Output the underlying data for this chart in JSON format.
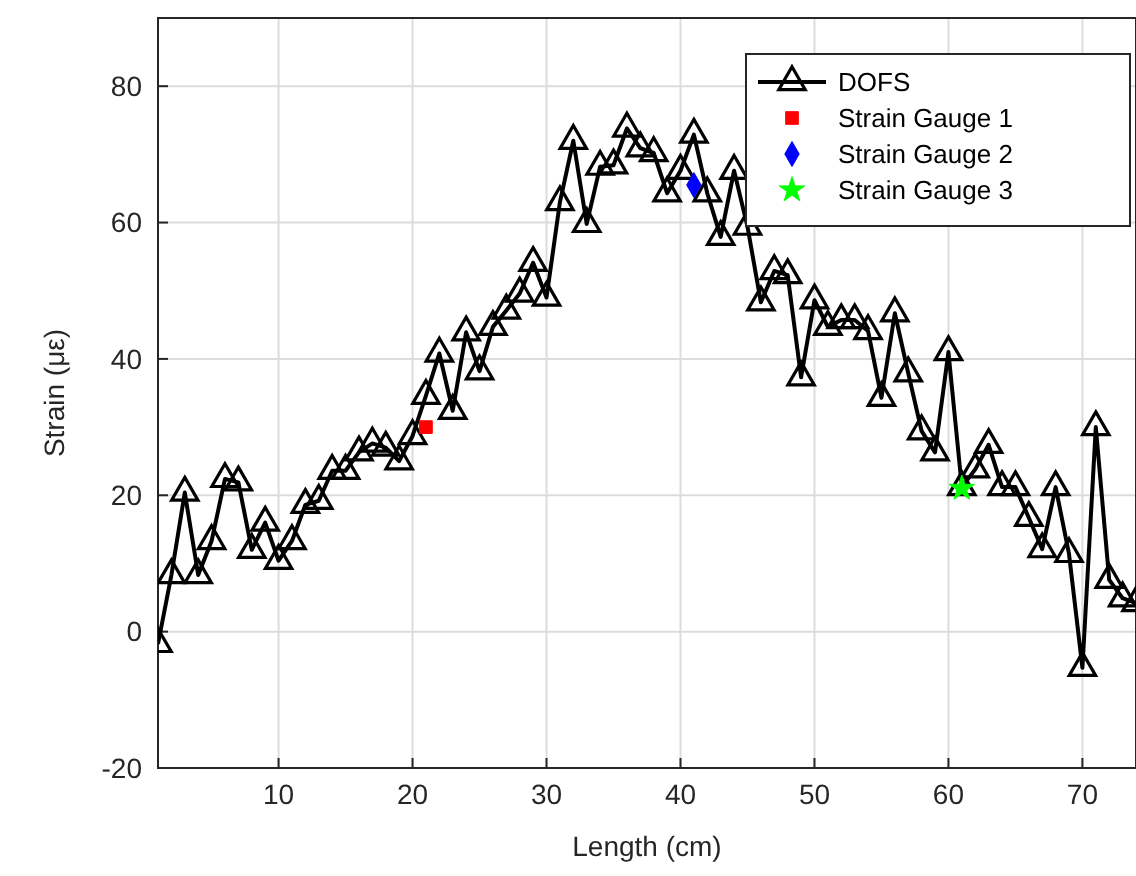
{
  "chart_data": {
    "type": "line",
    "xlabel": "Length (cm)",
    "ylabel": "Strain (με)",
    "xlim": [
      1,
      74
    ],
    "ylim": [
      -20,
      90
    ],
    "xticks": [
      10,
      20,
      30,
      40,
      50,
      60,
      70
    ],
    "yticks": [
      -20,
      0,
      20,
      40,
      60,
      80
    ],
    "grid": true,
    "legend": "top right",
    "series": [
      {
        "name": "DOFS",
        "marker": "triangle",
        "color": "#000000",
        "x": [
          1,
          2,
          3,
          4,
          5,
          6,
          7,
          8,
          9,
          10,
          11,
          12,
          13,
          14,
          15,
          16,
          17,
          18,
          19,
          20,
          21,
          22,
          23,
          24,
          25,
          26,
          27,
          28,
          29,
          30,
          31,
          32,
          33,
          34,
          35,
          36,
          37,
          38,
          39,
          40,
          41,
          42,
          43,
          44,
          45,
          46,
          47,
          48,
          49,
          50,
          51,
          52,
          53,
          54,
          55,
          56,
          57,
          58,
          59,
          60,
          61,
          62,
          63,
          64,
          65,
          66,
          67,
          68,
          69,
          70,
          71,
          72,
          73,
          74
        ],
        "values": [
          -1.8,
          8.3,
          20.4,
          8.3,
          13.3,
          22.4,
          21.9,
          12,
          16,
          10.4,
          13.3,
          18.6,
          19.2,
          23.6,
          23.6,
          26.3,
          27.6,
          27,
          25,
          28.7,
          34.6,
          40.8,
          32.4,
          43.9,
          38.2,
          44.7,
          47.1,
          49.6,
          54.1,
          49,
          63,
          72,
          59.8,
          68.2,
          68.4,
          73.8,
          70.9,
          70.2,
          64.3,
          67.6,
          72.9,
          64.3,
          57.9,
          67.6,
          59.4,
          48.3,
          52.9,
          52.3,
          37.3,
          48.6,
          44.7,
          45.7,
          45.7,
          44.1,
          34.3,
          46.7,
          37.9,
          29.4,
          26.3,
          41,
          21.2,
          23.8,
          27.4,
          21.2,
          21.2,
          16.7,
          12.1,
          21.2,
          11.4,
          -5.3,
          30,
          7.6,
          4.9,
          4.2
        ]
      },
      {
        "name": "Strain Gauge 1",
        "type": "scatter",
        "marker": "square",
        "color": "#ff0000",
        "x": [
          21
        ],
        "values": [
          30
        ]
      },
      {
        "name": "Strain Gauge 2",
        "type": "scatter",
        "marker": "diamond",
        "color": "#0000ff",
        "x": [
          41
        ],
        "values": [
          65.5
        ]
      },
      {
        "name": "Strain Gauge 3",
        "type": "scatter",
        "marker": "star",
        "color": "#00ff00",
        "x": [
          61
        ],
        "values": [
          21
        ]
      }
    ]
  }
}
